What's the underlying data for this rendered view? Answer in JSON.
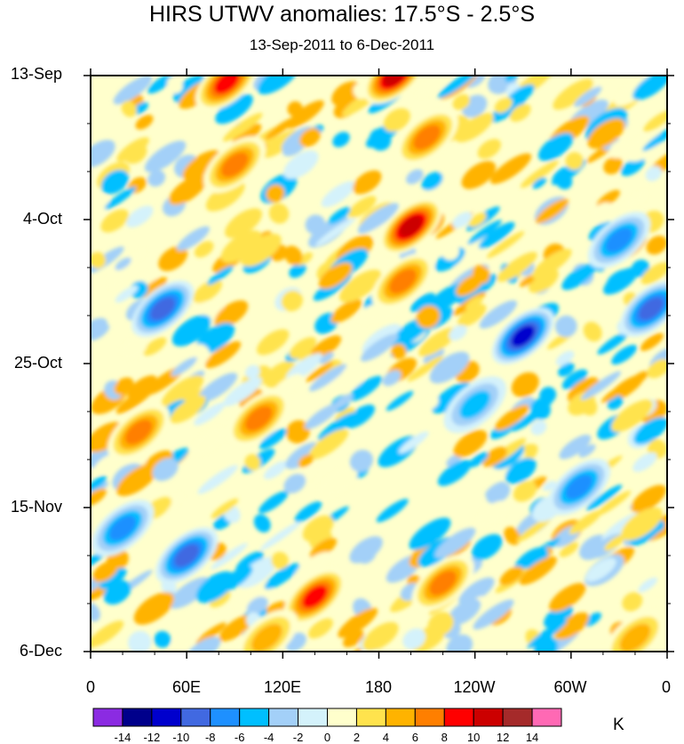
{
  "chart_data": {
    "type": "heatmap",
    "title": "HIRS UTWV anomalies: 17.5°S - 2.5°S",
    "subtitle": "13-Sep-2011 to 6-Dec-2011",
    "x_ticks": [
      "0",
      "60E",
      "120E",
      "180",
      "120W",
      "60W",
      "0"
    ],
    "x_values": [
      0,
      60,
      120,
      180,
      240,
      300,
      360
    ],
    "x_range": [
      0,
      360
    ],
    "y_ticks": [
      "13-Sep",
      "4-Oct",
      "25-Oct",
      "15-Nov",
      "6-Dec"
    ],
    "y_range_days": [
      0,
      84
    ],
    "y_direction": "time increases downward",
    "colorbar": {
      "unit": "K",
      "levels": [
        -14,
        -12,
        -10,
        -8,
        -6,
        -4,
        -2,
        0,
        2,
        4,
        6,
        8,
        10,
        12,
        14
      ],
      "level_labels": [
        "-14",
        "-12",
        "-10",
        "-8",
        "-6",
        "-4",
        "-2",
        "0",
        "2",
        "4",
        "6",
        "8",
        "10",
        "12",
        "14"
      ],
      "colors": [
        "#8b2be2",
        "#00008b",
        "#0000cd",
        "#4169e1",
        "#1e90ff",
        "#00bfff",
        "#a3d0f8",
        "#d4f2fb",
        "#ffffcc",
        "#ffe34d",
        "#ffb300",
        "#ff7f00",
        "#ff0000",
        "#cc0000",
        "#a52a2a",
        "#ff69b4"
      ]
    },
    "features": [
      {
        "lon": 200,
        "day": 22,
        "value": 12
      },
      {
        "lon": 190,
        "day": 0,
        "value": 12
      },
      {
        "lon": 85,
        "day": 1,
        "value": 10
      },
      {
        "lon": 210,
        "day": 9,
        "value": 8
      },
      {
        "lon": 270,
        "day": 38,
        "value": -12
      },
      {
        "lon": 45,
        "day": 34,
        "value": -10
      },
      {
        "lon": 60,
        "day": 70,
        "value": -10
      },
      {
        "lon": 350,
        "day": 34,
        "value": -10
      },
      {
        "lon": 140,
        "day": 76,
        "value": 10
      },
      {
        "lon": 220,
        "day": 74,
        "value": 8
      },
      {
        "lon": 105,
        "day": 50,
        "value": 8
      },
      {
        "lon": 195,
        "day": 30,
        "value": 8
      },
      {
        "lon": 90,
        "day": 13,
        "value": 8
      },
      {
        "lon": 330,
        "day": 24,
        "value": -8
      },
      {
        "lon": 305,
        "day": 60,
        "value": -8
      },
      {
        "lon": 30,
        "day": 52,
        "value": 8
      },
      {
        "lon": 110,
        "day": 82,
        "value": 6
      },
      {
        "lon": 340,
        "day": 82,
        "value": 6
      },
      {
        "lon": 20,
        "day": 66,
        "value": -8
      },
      {
        "lon": 240,
        "day": 48,
        "value": -6
      }
    ]
  }
}
